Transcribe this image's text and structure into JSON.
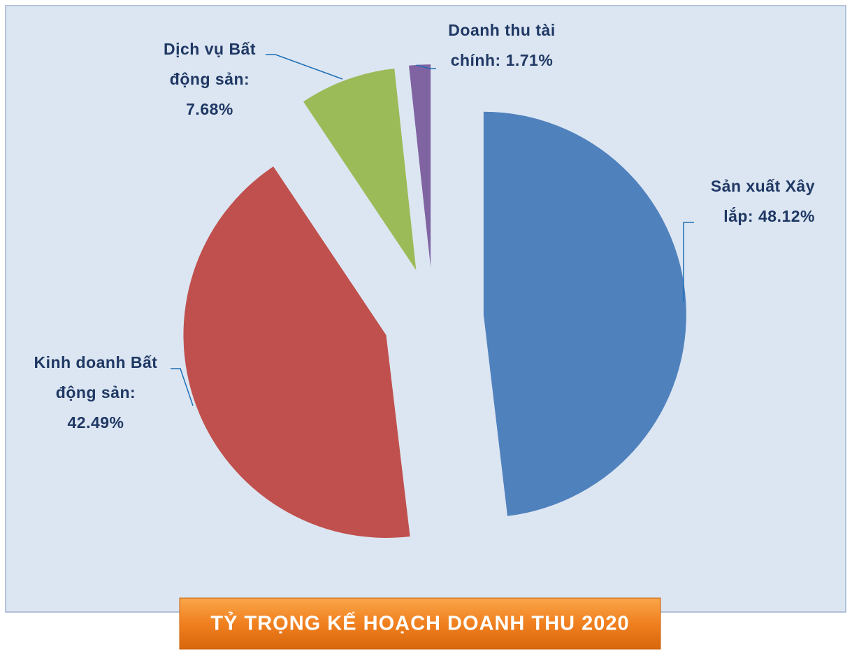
{
  "chart_data": {
    "type": "pie",
    "title": "TỶ TRỌNG KẾ HOẠCH DOANH THU 2020",
    "values": [
      48.12,
      42.49,
      7.68,
      1.71
    ],
    "value_labels": [
      "Sản xuất Xây lắp: 48.12%",
      "Kinh doanh Bất động sản: 42.49%",
      "Dịch vụ Bất động sản: 7.68%",
      "Doanh thu tài chính: 1.71%"
    ],
    "colors": [
      "#4f81bd",
      "#c0504d",
      "#9bbb59",
      "#8064a2"
    ],
    "exploded": true
  }
}
